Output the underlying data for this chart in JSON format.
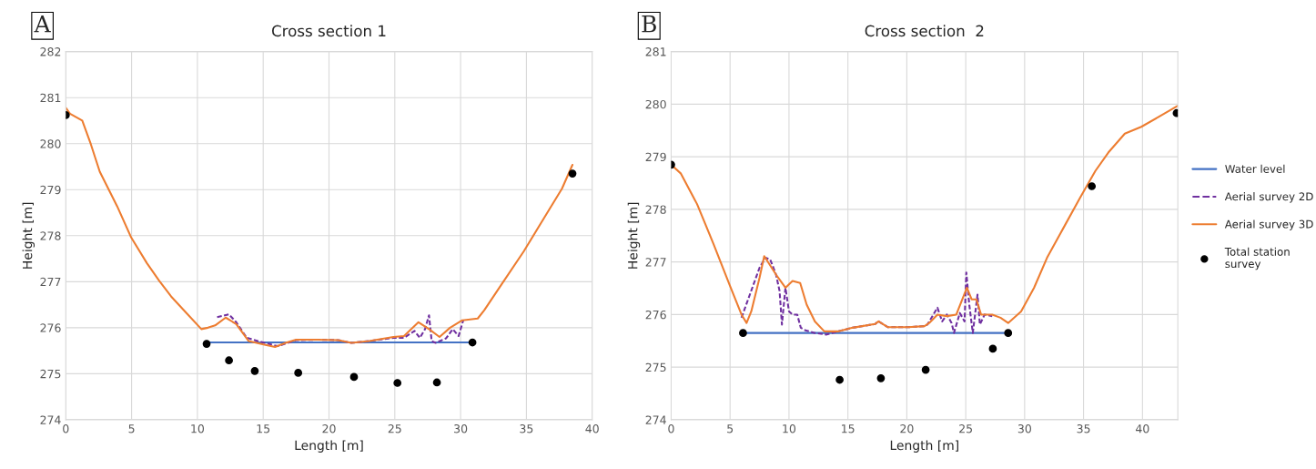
{
  "chart_data": [
    {
      "type": "line",
      "title": "Cross section 1",
      "xlabel": "Length [m]",
      "ylabel": "Height [m]",
      "xlim": [
        0,
        40
      ],
      "xticks": [
        0,
        5,
        10,
        15,
        20,
        25,
        30,
        35,
        40
      ],
      "ylim": [
        274,
        282
      ],
      "yticks": [
        274,
        275,
        276,
        277,
        278,
        279,
        280,
        281,
        282
      ],
      "grid": true,
      "legend": false,
      "annotations": [
        "A"
      ],
      "series": [
        {
          "type": "line",
          "color": "#4472c4",
          "line_style": "solid",
          "x": [
            10.7,
            30.9
          ],
          "values": [
            275.68,
            275.68
          ]
        },
        {
          "type": "line",
          "color": "#7030a0",
          "line_style": "dashed",
          "x": [
            11.5,
            12.4,
            12.95,
            13.75,
            15.1,
            16.1,
            17.5,
            19.1,
            20.7,
            21.7,
            23.05,
            24.9,
            25.7,
            26.5,
            26.9,
            27.3,
            27.6,
            27.8,
            28.1,
            28.9,
            29.4,
            29.85,
            30.2
          ],
          "values": [
            276.23,
            276.29,
            276.12,
            275.78,
            275.67,
            275.6,
            275.73,
            275.74,
            275.73,
            275.67,
            275.71,
            275.78,
            275.78,
            275.93,
            275.78,
            275.97,
            276.27,
            275.71,
            275.67,
            275.77,
            275.97,
            275.82,
            276.16
          ]
        },
        {
          "type": "line",
          "color": "#ed7d31",
          "line_style": "solid",
          "x": [
            0,
            0.32,
            1.25,
            1.9,
            2.58,
            3.9,
            4.97,
            6.17,
            7.1,
            8.0,
            9.2,
            10.3,
            10.8,
            11.35,
            12.15,
            12.95,
            13.9,
            15.1,
            15.9,
            16.7,
            17.5,
            19.1,
            20.7,
            21.7,
            23.05,
            24.9,
            25.7,
            26.8,
            27.6,
            28.4,
            29.2,
            30.1,
            31.3,
            31.8,
            33.2,
            34.8,
            36.4,
            37.7,
            38.5
          ],
          "values": [
            280.78,
            280.65,
            280.5,
            279.99,
            279.39,
            278.64,
            277.96,
            277.4,
            277.02,
            276.68,
            276.31,
            275.97,
            276.0,
            276.05,
            276.22,
            276.08,
            275.71,
            275.63,
            275.58,
            275.67,
            275.74,
            275.74,
            275.73,
            275.67,
            275.71,
            275.8,
            275.82,
            276.12,
            275.97,
            275.8,
            276.0,
            276.16,
            276.2,
            276.38,
            276.98,
            277.66,
            278.41,
            279.02,
            279.54
          ]
        },
        {
          "type": "scatter",
          "color": "#000000",
          "marker": "circle",
          "x": [
            0,
            10.7,
            12.4,
            14.36,
            17.66,
            21.9,
            25.2,
            28.2,
            30.9,
            38.5
          ],
          "values": [
            280.62,
            275.65,
            275.29,
            275.06,
            275.02,
            274.93,
            274.8,
            274.81,
            275.68,
            279.35
          ]
        }
      ]
    },
    {
      "type": "line",
      "title": "Cross section  2",
      "xlabel": "Length [m]",
      "ylabel": "Height [m]",
      "xlim": [
        0,
        43
      ],
      "xticks": [
        0,
        5,
        10,
        15,
        20,
        25,
        30,
        35,
        40
      ],
      "ylim": [
        274,
        281
      ],
      "yticks": [
        274,
        275,
        276,
        277,
        278,
        279,
        280,
        281
      ],
      "grid": true,
      "legend": "right",
      "annotations": [
        "B"
      ],
      "series": [
        {
          "type": "line",
          "name": "Water level",
          "color": "#4472c4",
          "line_style": "solid",
          "x": [
            6.1,
            28.6
          ],
          "values": [
            275.65,
            275.65
          ]
        },
        {
          "type": "line",
          "name": "Aerial survey 2D",
          "color": "#7030a0",
          "line_style": "dashed",
          "x": [
            5.97,
            7.5,
            8.0,
            8.4,
            8.9,
            9.2,
            9.4,
            9.7,
            10.0,
            10.3,
            10.7,
            11.0,
            11.4,
            12.2,
            13.2,
            14.15,
            15.4,
            17.3,
            17.6,
            18.4,
            20.1,
            21.5,
            21.75,
            22.6,
            23.0,
            23.4,
            23.8,
            24.0,
            24.5,
            24.9,
            25.05,
            25.3,
            25.6,
            26.0,
            26.2,
            26.6,
            27.25
          ],
          "values": [
            275.94,
            276.89,
            277.08,
            277.05,
            276.76,
            276.45,
            275.81,
            276.51,
            276.06,
            276.0,
            276.0,
            275.75,
            275.7,
            275.65,
            275.62,
            275.68,
            275.75,
            275.82,
            275.87,
            275.76,
            275.76,
            275.78,
            275.81,
            276.13,
            275.87,
            276.0,
            275.84,
            275.65,
            276.03,
            275.87,
            276.8,
            276.19,
            275.65,
            276.38,
            275.81,
            276.0,
            275.97
          ]
        },
        {
          "type": "line",
          "name": "Aerial survey 3D",
          "color": "#ed7d31",
          "line_style": "solid",
          "x": [
            0,
            0.83,
            2.2,
            3.6,
            5.0,
            5.97,
            6.4,
            6.8,
            7.5,
            7.9,
            8.9,
            9.7,
            10.3,
            10.95,
            11.5,
            12.2,
            13.0,
            14.15,
            15.4,
            17.3,
            17.6,
            18.4,
            20.1,
            21.5,
            21.9,
            22.6,
            23.4,
            24.2,
            25.1,
            25.5,
            25.9,
            26.3,
            27.25,
            27.95,
            28.6,
            29.7,
            30.8,
            31.9,
            33.3,
            34.7,
            36.0,
            37.1,
            38.5,
            39.9,
            41.3,
            43.0
          ],
          "values": [
            278.85,
            278.68,
            278.1,
            277.34,
            276.54,
            276.0,
            275.84,
            276.06,
            276.7,
            277.11,
            276.76,
            276.51,
            276.64,
            276.6,
            276.19,
            275.87,
            275.68,
            275.68,
            275.75,
            275.82,
            275.87,
            275.76,
            275.76,
            275.78,
            275.84,
            276.0,
            275.97,
            276.0,
            276.51,
            276.29,
            276.29,
            276.0,
            276.0,
            275.94,
            275.84,
            276.06,
            276.51,
            277.08,
            277.65,
            278.22,
            278.73,
            279.08,
            279.44,
            279.57,
            279.75,
            279.97
          ]
        },
        {
          "type": "scatter",
          "name": "Total station\nsurvey",
          "color": "#000000",
          "marker": "circle",
          "x": [
            0,
            6.1,
            14.3,
            17.8,
            21.6,
            27.3,
            28.6,
            35.7,
            42.9
          ],
          "values": [
            278.85,
            275.65,
            274.76,
            274.79,
            274.95,
            275.35,
            275.65,
            278.44,
            279.83
          ]
        }
      ]
    }
  ]
}
